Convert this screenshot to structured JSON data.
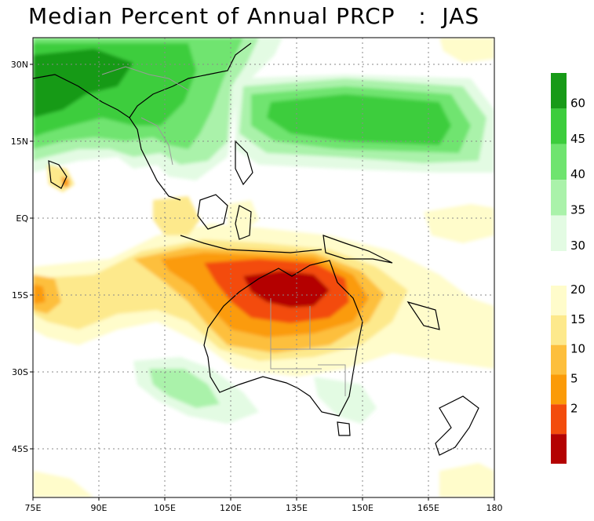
{
  "title": "Median Percent of Annual PRCP   :  JAS",
  "lat_labels": [
    "30N",
    "15N",
    "EQ",
    "15S",
    "30S",
    "45S"
  ],
  "lon_labels": [
    "75E",
    "90E",
    "105E",
    "120E",
    "135E",
    "150E",
    "165E",
    "180"
  ],
  "colorbar": {
    "upper_labels": [
      "60",
      "45",
      "40",
      "35",
      "30"
    ],
    "lower_labels": [
      "20",
      "15",
      "10",
      "5",
      "2"
    ],
    "upper_colors": [
      "#179a17",
      "#3ccd3c",
      "#6fe46f",
      "#aaf2aa",
      "#e3fbe3"
    ],
    "lower_colors": [
      "#fffccb",
      "#fde98c",
      "#fdbf3c",
      "#fb9b08",
      "#f34c0c",
      "#b40202"
    ]
  }
}
